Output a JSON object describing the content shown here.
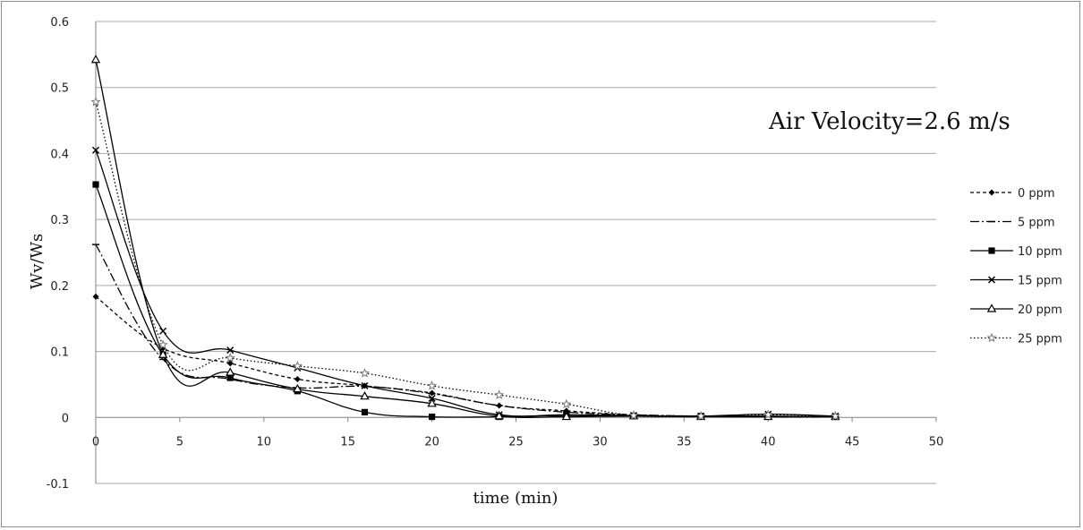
{
  "chart_data": {
    "type": "line",
    "title": "",
    "xlabel": "time (min)",
    "ylabel": "Wv/Ws",
    "xlim": [
      0,
      50
    ],
    "ylim": [
      -0.1,
      0.6
    ],
    "x_ticks": [
      "0",
      "5",
      "10",
      "15",
      "20",
      "25",
      "30",
      "35",
      "40",
      "45",
      "50"
    ],
    "y_ticks": [
      "-0.1",
      "0",
      "0.1",
      "0.2",
      "0.3",
      "0.4",
      "0.5",
      "0.6"
    ],
    "grid": "horizontal",
    "legend_position": "right",
    "annotation": "Air Velocity=2.6 m/s",
    "series": [
      {
        "name": "0 ppm",
        "marker": "diamond",
        "dash": "4,3",
        "x": [
          0,
          4,
          8,
          12,
          16,
          20,
          24,
          28,
          32,
          36,
          40,
          44
        ],
        "y": [
          0.183,
          0.105,
          0.082,
          0.058,
          0.048,
          0.037,
          0.018,
          0.01,
          0.004,
          0.002,
          0.001,
          0.001
        ]
      },
      {
        "name": "5 ppm",
        "marker": "dash",
        "dash": "10,3,2,3",
        "x": [
          0,
          4,
          8,
          12,
          16,
          20,
          24,
          28,
          32,
          36,
          40,
          44
        ],
        "y": [
          0.262,
          0.088,
          0.058,
          0.045,
          0.047,
          0.036,
          0.018,
          0.008,
          0.004,
          0.002,
          0.001,
          0.001
        ]
      },
      {
        "name": "10 ppm",
        "marker": "square",
        "dash": "",
        "x": [
          0,
          4,
          8,
          12,
          16,
          20,
          24,
          28,
          32,
          36,
          40,
          44
        ],
        "y": [
          0.353,
          0.095,
          0.06,
          0.04,
          0.008,
          0.001,
          0.001,
          0.003,
          0.002,
          0.002,
          0.002,
          0.001
        ]
      },
      {
        "name": "15 ppm",
        "marker": "x",
        "dash": "",
        "x": [
          0,
          4,
          8,
          12,
          16,
          20,
          24,
          28,
          32,
          36,
          40,
          44
        ],
        "y": [
          0.405,
          0.131,
          0.102,
          0.075,
          0.048,
          0.029,
          0.004,
          0.004,
          0.003,
          0.002,
          0.005,
          0.002
        ]
      },
      {
        "name": "20 ppm",
        "marker": "triangle",
        "dash": "",
        "x": [
          0,
          4,
          8,
          12,
          16,
          20,
          24,
          28,
          32,
          36,
          40,
          44
        ],
        "y": [
          0.542,
          0.095,
          0.068,
          0.043,
          0.032,
          0.021,
          0.002,
          0.001,
          0.002,
          0.001,
          0.001,
          0.001
        ]
      },
      {
        "name": "25 ppm",
        "marker": "star",
        "dash": "1.5,2.5",
        "x": [
          0,
          4,
          8,
          12,
          16,
          20,
          24,
          28,
          32,
          36,
          40,
          44
        ],
        "y": [
          0.478,
          0.11,
          0.09,
          0.078,
          0.067,
          0.048,
          0.034,
          0.02,
          0.003,
          0.002,
          0.004,
          0.002
        ]
      }
    ]
  }
}
